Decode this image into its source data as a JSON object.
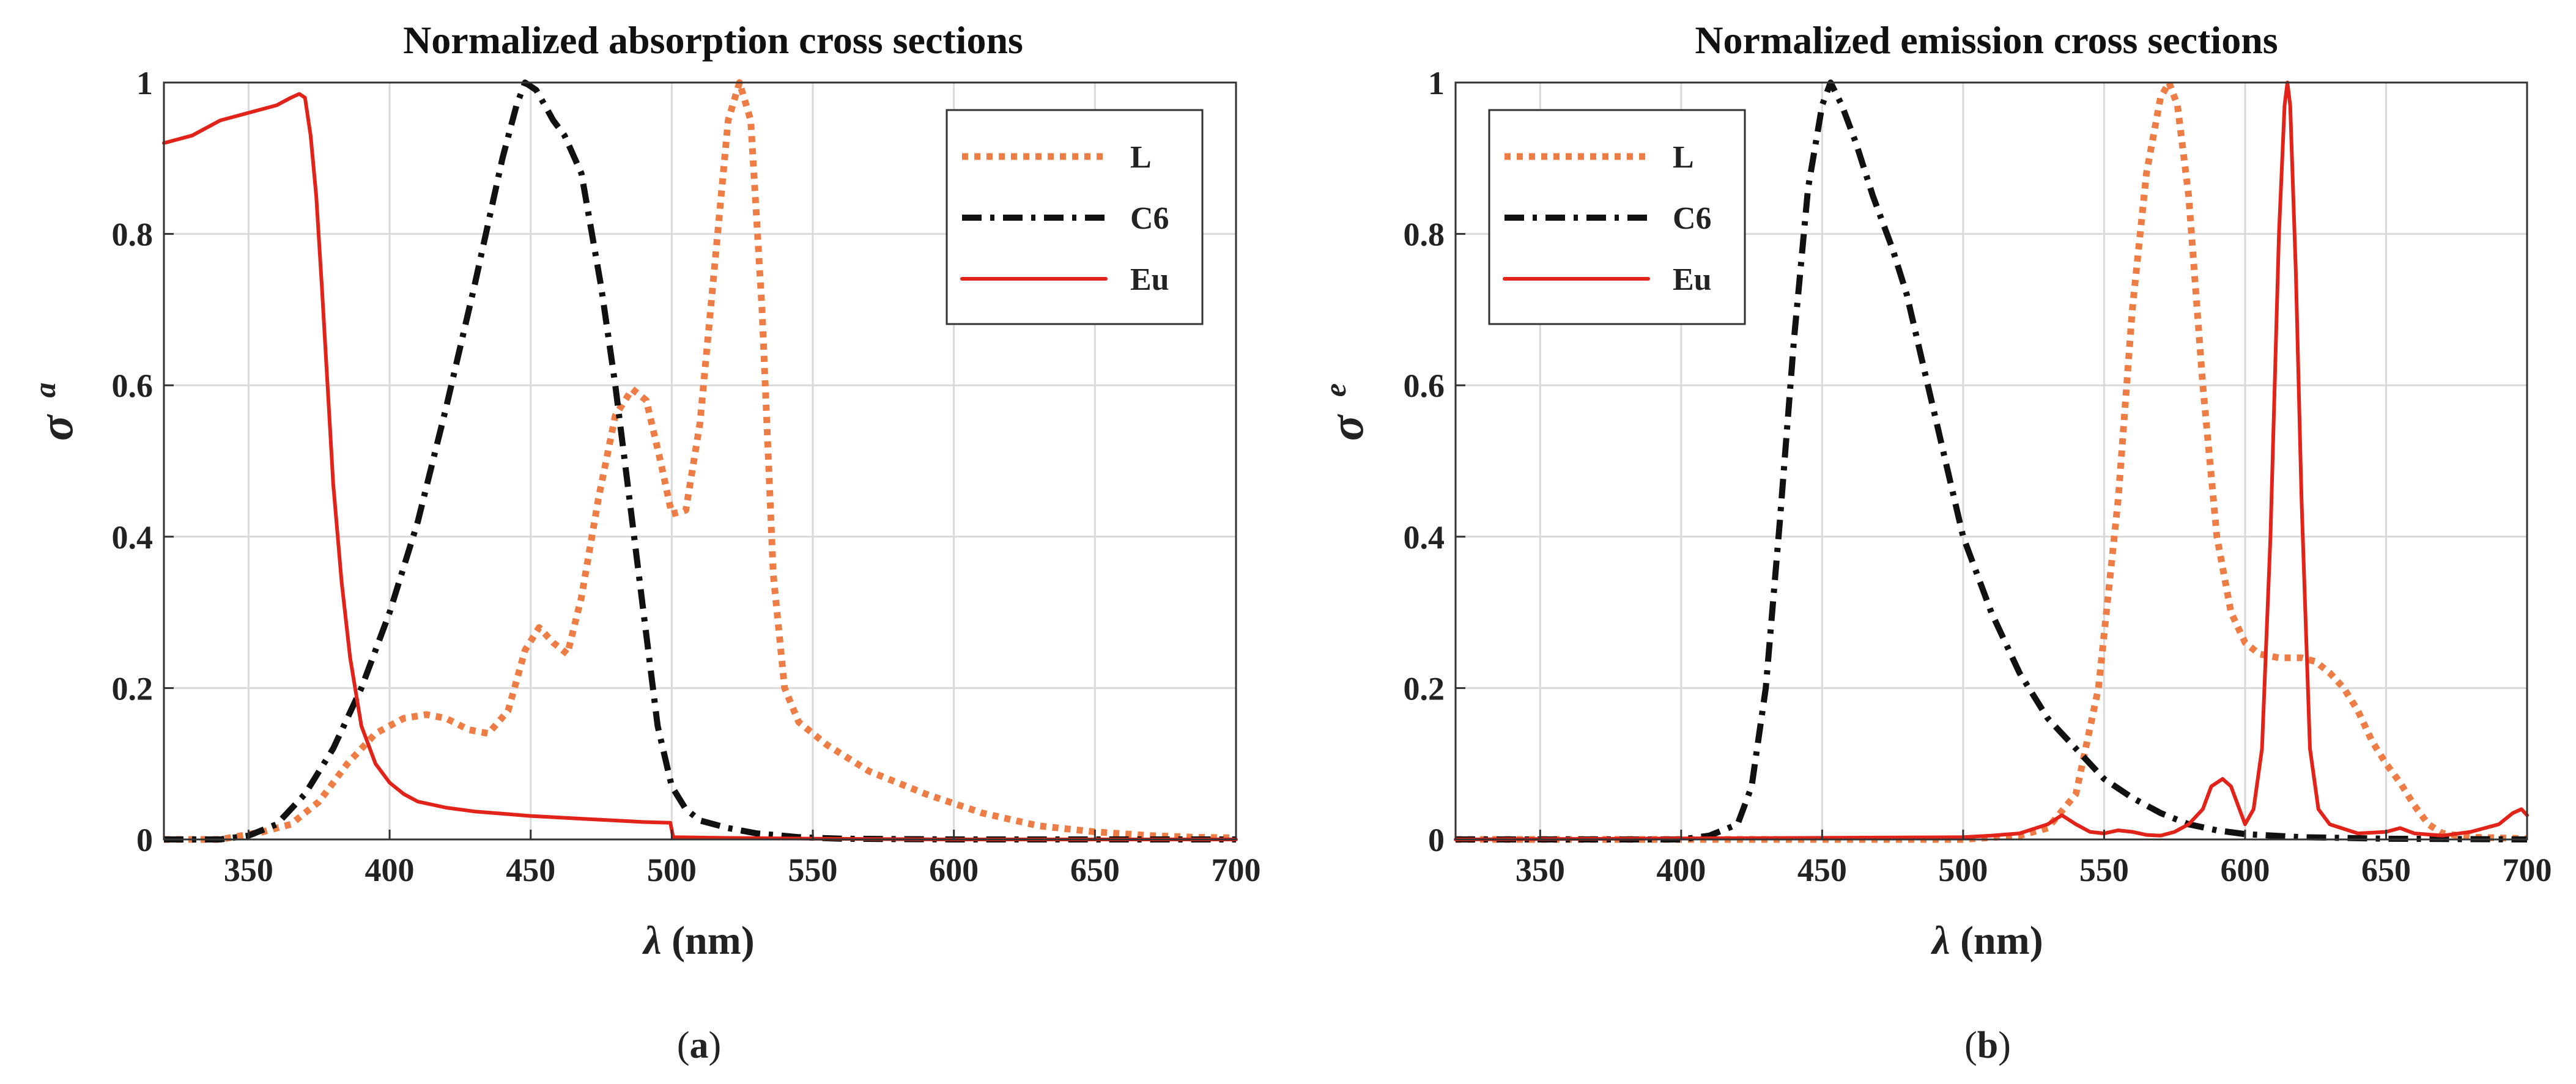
{
  "chart_data": [
    {
      "type": "line",
      "panel": "a",
      "caption": "(a)",
      "caption_letter": "a",
      "title": "Normalized absorption cross sections",
      "xlabel_symbol": "λ",
      "xlabel_unit": " (nm)",
      "ylabel_symbol": "σ",
      "ylabel_superscript": "a",
      "xlim": [
        320,
        700
      ],
      "ylim": [
        0,
        1
      ],
      "xticks": [
        350,
        400,
        450,
        500,
        550,
        600,
        650,
        700
      ],
      "xtick_labels": [
        "350",
        "400",
        "450",
        "500",
        "550",
        "600",
        "650",
        "700"
      ],
      "yticks": [
        0,
        0.2,
        0.4,
        0.6,
        0.8,
        1
      ],
      "ytick_labels": [
        "0",
        "0.2",
        "0.4",
        "0.6",
        "0.8",
        "1"
      ],
      "grid": true,
      "legend_position": "top-right",
      "series": [
        {
          "name": "L",
          "color": "#ee7d45",
          "style": "dotted",
          "x": [
            320,
            340,
            355,
            365,
            375,
            385,
            395,
            405,
            413,
            420,
            428,
            435,
            442,
            448,
            453,
            458,
            463,
            468,
            474,
            480,
            486,
            491,
            496,
            500,
            505,
            510,
            515,
            520,
            524,
            528,
            532,
            536,
            540,
            545,
            555,
            570,
            590,
            610,
            630,
            650,
            670,
            685,
            700
          ],
          "y": [
            0,
            0,
            0.01,
            0.02,
            0.05,
            0.1,
            0.14,
            0.16,
            0.165,
            0.16,
            0.145,
            0.14,
            0.17,
            0.25,
            0.28,
            0.26,
            0.245,
            0.32,
            0.45,
            0.56,
            0.595,
            0.58,
            0.5,
            0.43,
            0.435,
            0.55,
            0.75,
            0.95,
            1.0,
            0.95,
            0.7,
            0.35,
            0.2,
            0.155,
            0.125,
            0.09,
            0.06,
            0.035,
            0.018,
            0.01,
            0.005,
            0.003,
            0.002
          ]
        },
        {
          "name": "C6",
          "color": "#111111",
          "style": "dash-dot",
          "x": [
            320,
            340,
            350,
            360,
            370,
            380,
            390,
            400,
            410,
            420,
            430,
            440,
            445,
            448,
            452,
            458,
            462,
            468,
            475,
            480,
            485,
            490,
            495,
            500,
            505,
            510,
            520,
            530,
            545,
            560,
            600,
            650,
            700
          ],
          "y": [
            0,
            0,
            0.005,
            0.02,
            0.06,
            0.12,
            0.2,
            0.3,
            0.42,
            0.57,
            0.73,
            0.9,
            0.97,
            1.0,
            0.99,
            0.95,
            0.93,
            0.88,
            0.73,
            0.6,
            0.45,
            0.3,
            0.15,
            0.07,
            0.04,
            0.025,
            0.015,
            0.008,
            0.003,
            0.001,
            0,
            0,
            0
          ]
        },
        {
          "name": "Eu",
          "color": "#e2231a",
          "style": "solid",
          "x": [
            320,
            330,
            340,
            350,
            360,
            365,
            368,
            370,
            372,
            374,
            376,
            378,
            380,
            383,
            386,
            390,
            395,
            400,
            405,
            410,
            420,
            430,
            440,
            450,
            460,
            470,
            480,
            490,
            499.5,
            500.5,
            520,
            550,
            600,
            650,
            700
          ],
          "y": [
            0.92,
            0.93,
            0.95,
            0.96,
            0.97,
            0.98,
            0.985,
            0.98,
            0.93,
            0.85,
            0.73,
            0.6,
            0.47,
            0.34,
            0.24,
            0.15,
            0.1,
            0.075,
            0.06,
            0.05,
            0.042,
            0.037,
            0.034,
            0.031,
            0.029,
            0.027,
            0.025,
            0.023,
            0.022,
            0.003,
            0.002,
            0.001,
            0,
            0,
            0
          ]
        }
      ]
    },
    {
      "type": "line",
      "panel": "b",
      "caption": "(b)",
      "caption_letter": "b",
      "title": "Normalized emission cross sections",
      "xlabel_symbol": "λ",
      "xlabel_unit": " (nm)",
      "ylabel_symbol": "σ",
      "ylabel_superscript": "e",
      "xlim": [
        320,
        700
      ],
      "ylim": [
        0,
        1
      ],
      "xticks": [
        350,
        400,
        450,
        500,
        550,
        600,
        650,
        700
      ],
      "xtick_labels": [
        "350",
        "400",
        "450",
        "500",
        "550",
        "600",
        "650",
        "700"
      ],
      "yticks": [
        0,
        0.2,
        0.4,
        0.6,
        0.8,
        1
      ],
      "ytick_labels": [
        "0",
        "0.2",
        "0.4",
        "0.6",
        "0.8",
        "1"
      ],
      "grid": true,
      "legend_position": "top-left",
      "series": [
        {
          "name": "L",
          "color": "#ee7d45",
          "style": "dotted",
          "x": [
            320,
            500,
            520,
            530,
            540,
            548,
            555,
            560,
            565,
            570,
            573,
            576,
            580,
            585,
            590,
            595,
            600,
            605,
            612,
            620,
            625,
            630,
            635,
            640,
            645,
            650,
            655,
            660,
            665,
            670,
            680,
            690,
            700
          ],
          "y": [
            0,
            0,
            0.005,
            0.015,
            0.06,
            0.2,
            0.45,
            0.7,
            0.88,
            0.98,
            1.0,
            0.97,
            0.85,
            0.6,
            0.4,
            0.3,
            0.26,
            0.245,
            0.24,
            0.24,
            0.235,
            0.22,
            0.2,
            0.17,
            0.13,
            0.1,
            0.075,
            0.045,
            0.02,
            0.008,
            0.003,
            0.002,
            0.001
          ]
        },
        {
          "name": "C6",
          "color": "#111111",
          "style": "dash-dot",
          "x": [
            320,
            400,
            410,
            420,
            425,
            430,
            435,
            440,
            445,
            450,
            453,
            457,
            462,
            468,
            475,
            480,
            485,
            490,
            495,
            500,
            510,
            520,
            530,
            540,
            550,
            560,
            570,
            580,
            590,
            600,
            620,
            650,
            700
          ],
          "y": [
            0,
            0,
            0.005,
            0.02,
            0.07,
            0.2,
            0.42,
            0.66,
            0.86,
            0.97,
            1.0,
            0.97,
            0.92,
            0.85,
            0.78,
            0.72,
            0.64,
            0.56,
            0.48,
            0.4,
            0.3,
            0.22,
            0.16,
            0.12,
            0.08,
            0.055,
            0.035,
            0.02,
            0.012,
            0.007,
            0.003,
            0.001,
            0
          ]
        },
        {
          "name": "Eu",
          "color": "#e2231a",
          "style": "solid",
          "x": [
            320,
            500,
            510,
            520,
            530,
            535,
            540,
            545,
            550,
            555,
            560,
            565,
            570,
            575,
            580,
            585,
            588,
            592,
            595,
            598,
            600,
            603,
            606,
            609,
            612,
            614,
            615,
            616,
            618,
            620,
            623,
            626,
            630,
            640,
            650,
            655,
            660,
            670,
            680,
            690,
            695,
            698,
            700
          ],
          "y": [
            0,
            0.003,
            0.005,
            0.008,
            0.02,
            0.032,
            0.02,
            0.01,
            0.008,
            0.012,
            0.01,
            0.006,
            0.005,
            0.01,
            0.02,
            0.04,
            0.07,
            0.08,
            0.07,
            0.04,
            0.02,
            0.04,
            0.12,
            0.4,
            0.8,
            0.97,
            1.0,
            0.97,
            0.75,
            0.45,
            0.12,
            0.04,
            0.02,
            0.008,
            0.01,
            0.015,
            0.008,
            0.005,
            0.01,
            0.02,
            0.035,
            0.04,
            0.032
          ]
        }
      ]
    }
  ]
}
